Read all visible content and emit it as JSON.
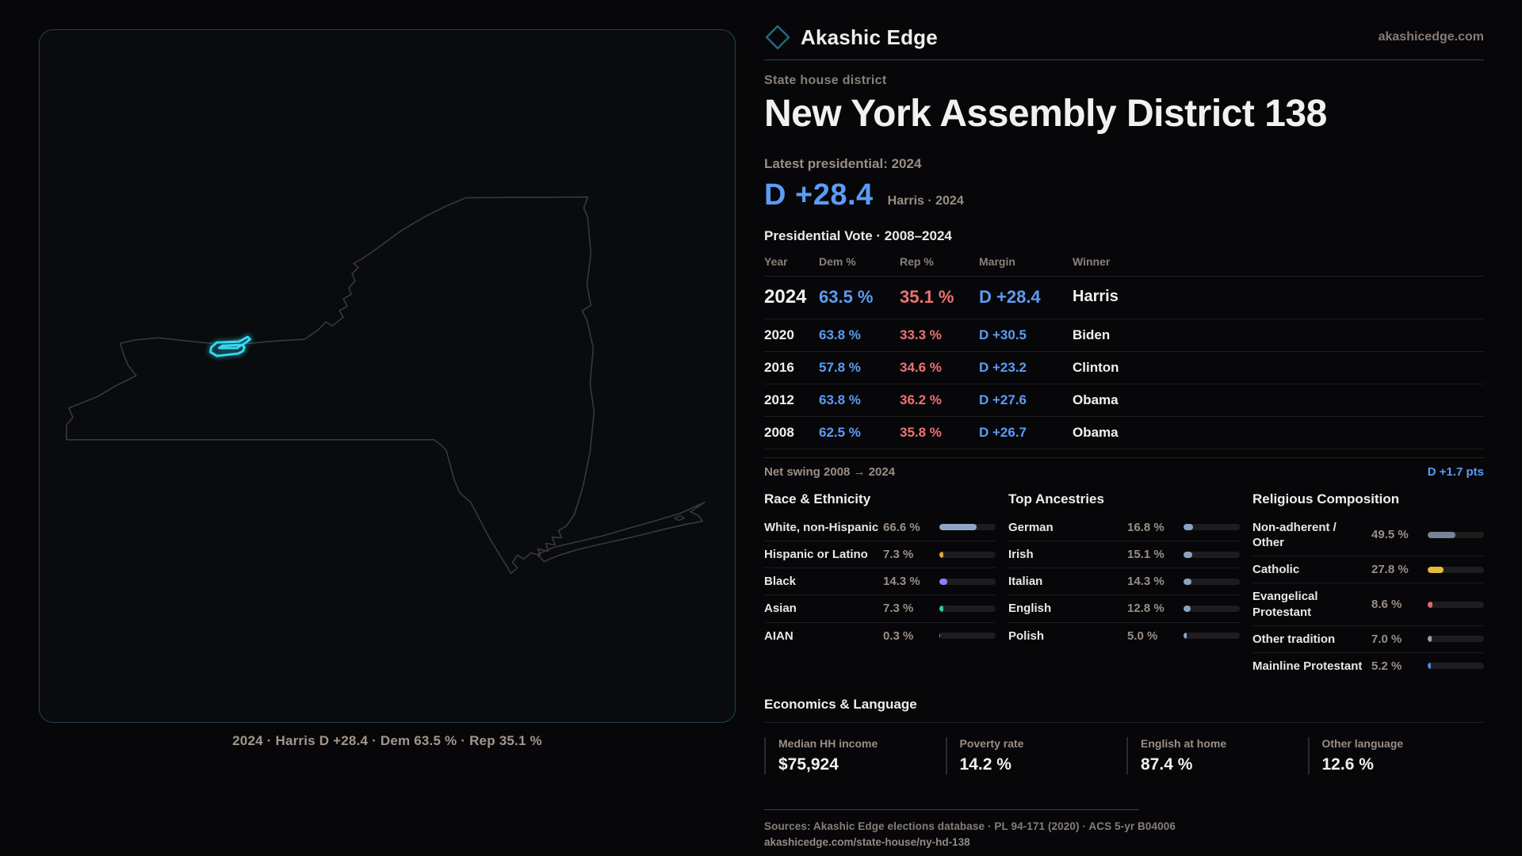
{
  "brand": {
    "name": "Akashic Edge",
    "domain": "akashicedge.com"
  },
  "eyebrow": "State house district",
  "title": "New York Assembly District 138",
  "latest": {
    "label": "Latest presidential: 2024",
    "margin": "D +28.4",
    "sub": "Harris · 2024"
  },
  "vote_table": {
    "title": "Presidential Vote · 2008–2024",
    "columns": [
      "Year",
      "Dem %",
      "Rep %",
      "Margin",
      "Winner"
    ],
    "rows": [
      {
        "year": "2024",
        "dem": "63.5 %",
        "rep": "35.1 %",
        "margin": "D +28.4",
        "winner": "Harris",
        "emphasis": true
      },
      {
        "year": "2020",
        "dem": "63.8 %",
        "rep": "33.3 %",
        "margin": "D +30.5",
        "winner": "Biden",
        "emphasis": false
      },
      {
        "year": "2016",
        "dem": "57.8 %",
        "rep": "34.6 %",
        "margin": "D +23.2",
        "winner": "Clinton",
        "emphasis": false
      },
      {
        "year": "2012",
        "dem": "63.8 %",
        "rep": "36.2 %",
        "margin": "D +27.6",
        "winner": "Obama",
        "emphasis": false
      },
      {
        "year": "2008",
        "dem": "62.5 %",
        "rep": "35.8 %",
        "margin": "D +26.7",
        "winner": "Obama",
        "emphasis": false
      }
    ]
  },
  "net_swing": {
    "label": "Net swing 2008 → 2024",
    "value": "D +1.7 pts"
  },
  "demographics": [
    {
      "heading": "Race & Ethnicity",
      "rows": [
        {
          "label": "White, non-Hispanic",
          "value": "66.6 %",
          "pct": 66.6,
          "color": "#8da6c6"
        },
        {
          "label": "Hispanic or Latino",
          "value": "7.3 %",
          "pct": 7.3,
          "color": "#e2a43b"
        },
        {
          "label": "Black",
          "value": "14.3 %",
          "pct": 14.3,
          "color": "#8f7ef2"
        },
        {
          "label": "Asian",
          "value": "7.3 %",
          "pct": 7.3,
          "color": "#2ecd9f"
        },
        {
          "label": "AIAN",
          "value": "0.3 %",
          "pct": 0.3,
          "color": "#8da6c6"
        }
      ]
    },
    {
      "heading": "Top Ancestries",
      "rows": [
        {
          "label": "German",
          "value": "16.8 %",
          "pct": 16.8,
          "color": "#8ba3c2"
        },
        {
          "label": "Irish",
          "value": "15.1 %",
          "pct": 15.1,
          "color": "#8ba3c2"
        },
        {
          "label": "Italian",
          "value": "14.3 %",
          "pct": 14.3,
          "color": "#8ba3c2"
        },
        {
          "label": "English",
          "value": "12.8 %",
          "pct": 12.8,
          "color": "#8ba3c2"
        },
        {
          "label": "Polish",
          "value": "5.0 %",
          "pct": 5.0,
          "color": "#8ba3c2"
        }
      ]
    },
    {
      "heading": "Religious Composition",
      "rows": [
        {
          "label": "Non-adherent / Other",
          "value": "49.5 %",
          "pct": 49.5,
          "color": "#76839b"
        },
        {
          "label": "Catholic",
          "value": "27.8 %",
          "pct": 27.8,
          "color": "#e6b93d"
        },
        {
          "label": "Evangelical Protestant",
          "value": "8.6 %",
          "pct": 8.6,
          "color": "#e06c6c"
        },
        {
          "label": "Other tradition",
          "value": "7.0 %",
          "pct": 7.0,
          "color": "#97a0ab"
        },
        {
          "label": "Mainline Protestant",
          "value": "5.2 %",
          "pct": 5.2,
          "color": "#4a8cf0"
        }
      ]
    }
  ],
  "economics": {
    "heading": "Economics & Language",
    "stats": [
      {
        "label": "Median HH income",
        "value": "$75,924"
      },
      {
        "label": "Poverty rate",
        "value": "14.2 %"
      },
      {
        "label": "English at home",
        "value": "87.4 %"
      },
      {
        "label": "Other language",
        "value": "12.6 %"
      }
    ]
  },
  "footer": {
    "sources": "Sources: Akashic Edge elections database · PL 94-171 (2020) · ACS 5-yr B04006",
    "link": "akashicedge.com/state-house/ny-hd-138"
  },
  "map": {
    "caption": "2024 · Harris D +28.4 · Dem 63.5 % · Rep 35.1 %",
    "district_color": "#35d8f0",
    "outline_color": "#38393c"
  },
  "colors": {
    "dem_blue": "#5b9cf6",
    "rep_red": "#ee7272",
    "accent_teal": "#1d4d59"
  }
}
